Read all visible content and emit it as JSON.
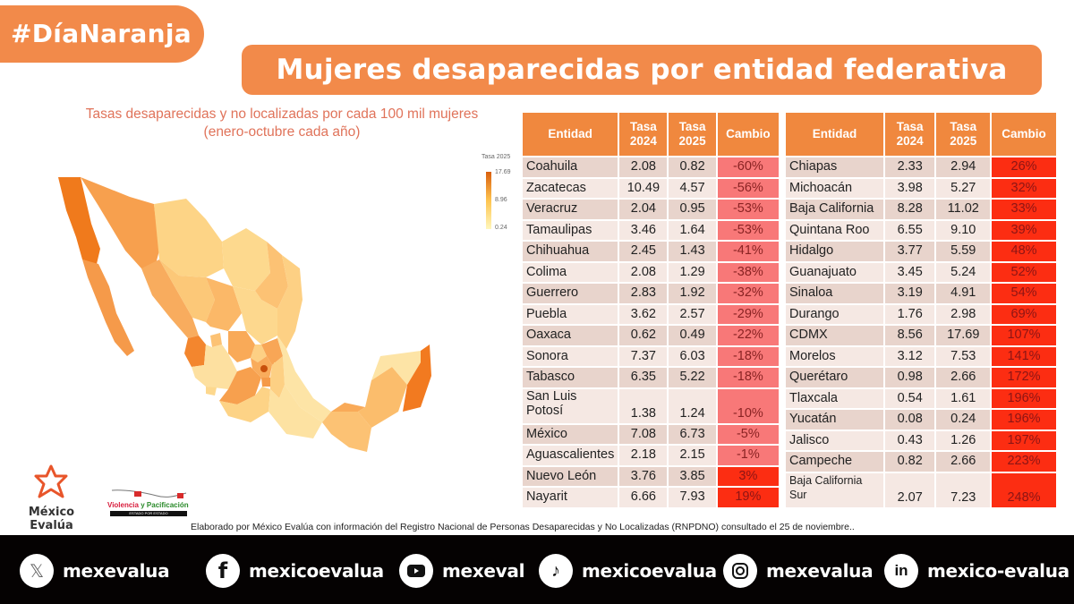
{
  "header": {
    "hashtag": "#DíaNaranja",
    "title": "Mujeres desaparecidas por entidad federativa",
    "subtitle_line1": "Tasas desaparecidas y no localizadas por cada 100 mil mujeres",
    "subtitle_line2": "(enero-octubre cada año)"
  },
  "colors": {
    "brand_orange": "#f28a4a",
    "table_header": "#f0883e",
    "decrease_cell": "#f87878",
    "increase_cell": "#fc2d12",
    "map_low": "#fff7bc",
    "map_mid": "#fec44f",
    "map_high": "#d95f0e"
  },
  "legend": {
    "title": "Tasa 2025",
    "max": "17.69",
    "mid": "8.96",
    "min": "0.24"
  },
  "table_headers": {
    "entidad": "Entidad",
    "tasa2024_l1": "Tasa",
    "tasa2024_l2": "2024",
    "tasa2025_l1": "Tasa",
    "tasa2025_l2": "2025",
    "cambio": "Cambio"
  },
  "chart_data": [
    {
      "type": "table",
      "title": "Entidades con disminución",
      "columns": [
        "Entidad",
        "Tasa 2024",
        "Tasa 2025",
        "Cambio"
      ],
      "rows": [
        {
          "entidad": "Coahuila",
          "t2024": "2.08",
          "t2025": "0.82",
          "cambio": "-60%"
        },
        {
          "entidad": "Zacatecas",
          "t2024": "10.49",
          "t2025": "4.57",
          "cambio": "-56%"
        },
        {
          "entidad": "Veracruz",
          "t2024": "2.04",
          "t2025": "0.95",
          "cambio": "-53%"
        },
        {
          "entidad": "Tamaulipas",
          "t2024": "3.46",
          "t2025": "1.64",
          "cambio": "-53%"
        },
        {
          "entidad": "Chihuahua",
          "t2024": "2.45",
          "t2025": "1.43",
          "cambio": "-41%"
        },
        {
          "entidad": "Colima",
          "t2024": "2.08",
          "t2025": "1.29",
          "cambio": "-38%"
        },
        {
          "entidad": "Guerrero",
          "t2024": "2.83",
          "t2025": "1.92",
          "cambio": "-32%"
        },
        {
          "entidad": "Puebla",
          "t2024": "3.62",
          "t2025": "2.57",
          "cambio": "-29%"
        },
        {
          "entidad": "Oaxaca",
          "t2024": "0.62",
          "t2025": "0.49",
          "cambio": "-22%"
        },
        {
          "entidad": "Sonora",
          "t2024": "7.37",
          "t2025": "6.03",
          "cambio": "-18%"
        },
        {
          "entidad": "Tabasco",
          "t2024": "6.35",
          "t2025": "5.22",
          "cambio": "-18%"
        },
        {
          "entidad": "San Luis Potosí",
          "t2024": "1.38",
          "t2025": "1.24",
          "cambio": "-10%"
        },
        {
          "entidad": "México",
          "t2024": "7.08",
          "t2025": "6.73",
          "cambio": "-5%"
        },
        {
          "entidad": "Aguascalientes",
          "t2024": "2.18",
          "t2025": "2.15",
          "cambio": "-1%"
        },
        {
          "entidad": "Nuevo León",
          "t2024": "3.76",
          "t2025": "3.85",
          "cambio": "3%"
        },
        {
          "entidad": "Nayarit",
          "t2024": "6.66",
          "t2025": "7.93",
          "cambio": "19%"
        }
      ]
    },
    {
      "type": "table",
      "title": "Entidades con aumento",
      "columns": [
        "Entidad",
        "Tasa 2024",
        "Tasa 2025",
        "Cambio"
      ],
      "rows": [
        {
          "entidad": "Chiapas",
          "t2024": "2.33",
          "t2025": "2.94",
          "cambio": "26%"
        },
        {
          "entidad": "Michoacán",
          "t2024": "3.98",
          "t2025": "5.27",
          "cambio": "32%"
        },
        {
          "entidad": "Baja California",
          "t2024": "8.28",
          "t2025": "11.02",
          "cambio": "33%"
        },
        {
          "entidad": "Quintana Roo",
          "t2024": "6.55",
          "t2025": "9.10",
          "cambio": "39%"
        },
        {
          "entidad": "Hidalgo",
          "t2024": "3.77",
          "t2025": "5.59",
          "cambio": "48%"
        },
        {
          "entidad": "Guanajuato",
          "t2024": "3.45",
          "t2025": "5.24",
          "cambio": "52%"
        },
        {
          "entidad": "Sinaloa",
          "t2024": "3.19",
          "t2025": "4.91",
          "cambio": "54%"
        },
        {
          "entidad": "Durango",
          "t2024": "1.76",
          "t2025": "2.98",
          "cambio": "69%"
        },
        {
          "entidad": "CDMX",
          "t2024": "8.56",
          "t2025": "17.69",
          "cambio": "107%"
        },
        {
          "entidad": "Morelos",
          "t2024": "3.12",
          "t2025": "7.53",
          "cambio": "141%"
        },
        {
          "entidad": "Querétaro",
          "t2024": "0.98",
          "t2025": "2.66",
          "cambio": "172%"
        },
        {
          "entidad": "Tlaxcala",
          "t2024": "0.54",
          "t2025": "1.61",
          "cambio": "196%"
        },
        {
          "entidad": "Yucatán",
          "t2024": "0.08",
          "t2025": "0.24",
          "cambio": "196%"
        },
        {
          "entidad": "Jalisco",
          "t2024": "0.43",
          "t2025": "1.26",
          "cambio": "197%"
        },
        {
          "entidad": "Campeche",
          "t2024": "0.82",
          "t2025": "2.66",
          "cambio": "223%"
        },
        {
          "entidad": "Baja California Sur",
          "t2024": "2.07",
          "t2025": "7.23",
          "cambio": "248%"
        }
      ]
    },
    {
      "type": "heatmap",
      "title": "Tasa 2025 por entidad (mapa coroplético)",
      "legend_title": "Tasa 2025",
      "scale_range": [
        0.24,
        17.69
      ],
      "legend_ticks": [
        17.69,
        8.96,
        0.24
      ]
    }
  ],
  "logos": {
    "mexico_evalua": "México Evalúa",
    "vp_word1": "Violencia",
    "vp_word2": "y",
    "vp_word3": "Pacificación",
    "vp_tag": "ESTADO POR ESTADO"
  },
  "footnote": "Elaborado por México Evalúa con información del Registro Nacional de Personas Desaparecidas y No Localizadas (RNPDNO) consultado el 25 de noviembre..",
  "social": [
    {
      "icon": "x-icon",
      "handle": "mexevalua"
    },
    {
      "icon": "facebook-icon",
      "handle": "mexicoevalua"
    },
    {
      "icon": "youtube-icon",
      "handle": "mexeval"
    },
    {
      "icon": "tiktok-icon",
      "handle": "mexicoevalua"
    },
    {
      "icon": "instagram-icon",
      "handle": "mexevalua"
    },
    {
      "icon": "linkedin-icon",
      "handle": "mexico-evalua"
    }
  ]
}
